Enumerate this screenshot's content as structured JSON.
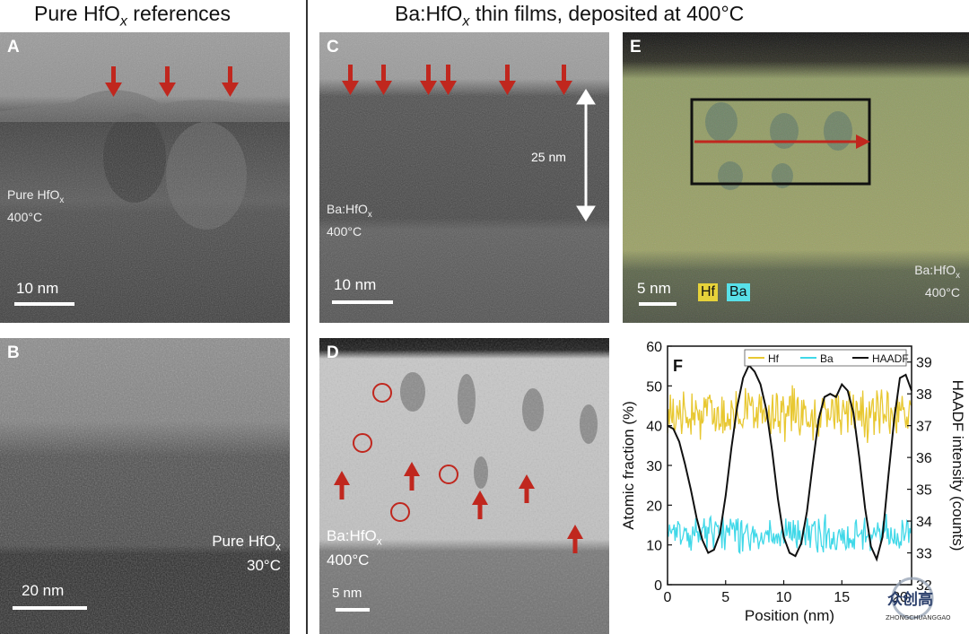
{
  "titles": {
    "left": "Pure HfO",
    "left_sub": "x",
    "left_rest": " references",
    "right": "Ba:HfO",
    "right_sub": "x",
    "right_rest": " thin films, deposited at 400°C"
  },
  "panels": {
    "A": {
      "label": "A",
      "caption_line1": "Pure HfO",
      "caption_sub": "x",
      "caption_line2": "400°C",
      "scale": "10 nm"
    },
    "B": {
      "label": "B",
      "caption_line1": "Pure HfO",
      "caption_sub": "x",
      "caption_line2": "30°C",
      "scale": "20 nm"
    },
    "C": {
      "label": "C",
      "caption_line1": "Ba:HfO",
      "caption_sub": "x",
      "caption_line2": "400°C",
      "scale": "10 nm",
      "thickness": "25 nm"
    },
    "D": {
      "label": "D",
      "caption_line1": "Ba:HfO",
      "caption_sub": "x",
      "caption_line2": "400°C",
      "scale": "5 nm"
    },
    "E": {
      "label": "E",
      "caption_line1": "Ba:HfO",
      "caption_sub": "x",
      "caption_line2": "400°C",
      "scale": "5 nm",
      "legend_hf": "Hf",
      "legend_ba": "Ba"
    }
  },
  "colors": {
    "arrow": "#c0271e",
    "hf": "#e8c832",
    "ba": "#40d8e8",
    "haadf": "#111111",
    "legend_hf_bg": "#e6d23a",
    "legend_ba_bg": "#58e0e8"
  },
  "chart_data": {
    "type": "line",
    "panel_label": "F",
    "xlabel": "Position (nm)",
    "ylabel_left": "Atomic fraction (%)",
    "ylabel_right": "HAADF intensity (counts)",
    "xlim": [
      0,
      21
    ],
    "ylim_left": [
      0,
      60
    ],
    "ylim_right": [
      32,
      39.5
    ],
    "x_ticks": [
      0,
      5,
      10,
      15,
      20
    ],
    "y_ticks_left": [
      0,
      10,
      20,
      30,
      40,
      50,
      60
    ],
    "y_ticks_right": [
      32,
      33,
      34,
      35,
      36,
      37,
      38,
      39
    ],
    "legend": [
      "Hf",
      "Ba",
      "HAADF"
    ],
    "legend_position": "top",
    "series": [
      {
        "name": "Hf",
        "axis": "left",
        "mean": 43,
        "noise": 5,
        "x": [
          0,
          21
        ],
        "y": [
          43,
          43
        ]
      },
      {
        "name": "Ba",
        "axis": "left",
        "mean": 13,
        "noise": 3.5,
        "x": [
          0,
          21
        ],
        "y": [
          13,
          13
        ]
      },
      {
        "name": "HAADF",
        "axis": "right",
        "x": [
          0,
          0.5,
          1,
          1.5,
          2,
          2.5,
          3,
          3.5,
          4,
          4.5,
          5,
          5.5,
          6,
          6.5,
          7,
          7.5,
          8,
          8.5,
          9,
          9.5,
          10,
          10.5,
          11,
          11.5,
          12,
          12.5,
          13,
          13.5,
          14,
          14.5,
          15,
          15.5,
          16,
          16.5,
          17,
          17.5,
          18,
          18.5,
          19,
          19.5,
          20,
          20.5,
          21
        ],
        "y": [
          37.0,
          36.9,
          36.5,
          35.8,
          35.0,
          34.1,
          33.4,
          33.0,
          33.1,
          33.6,
          34.8,
          36.3,
          37.6,
          38.5,
          38.9,
          38.7,
          38.3,
          37.5,
          36.2,
          34.7,
          33.5,
          33.0,
          32.9,
          33.3,
          34.3,
          35.8,
          37.2,
          37.9,
          38.0,
          37.9,
          38.3,
          38.1,
          37.4,
          36.0,
          34.4,
          33.2,
          32.8,
          33.5,
          35.4,
          37.2,
          38.5,
          38.6,
          38.1
        ]
      }
    ]
  },
  "watermark": {
    "text": "ZHONGCHUANGGAO"
  }
}
